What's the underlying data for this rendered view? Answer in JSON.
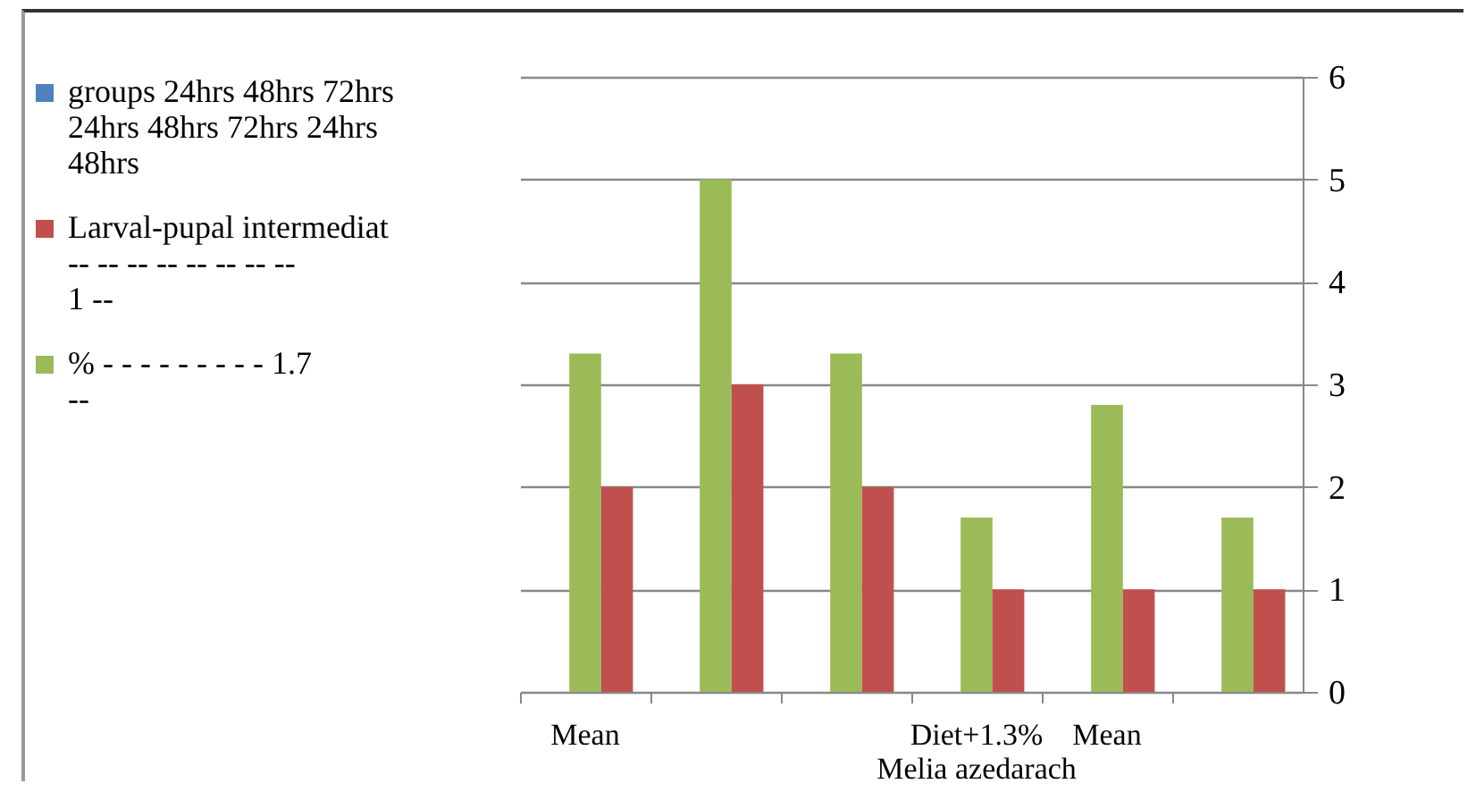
{
  "chart_data": {
    "type": "bar",
    "categories": [
      "Mean",
      null,
      null,
      "Diet+1.3% Melia azedarach",
      "Mean",
      null
    ],
    "series": [
      {
        "name": "groups 24hrs 48hrs 72hrs 24hrs 48hrs 72hrs 24hrs 48hrs",
        "color": "#4f81bd",
        "values": [
          null,
          null,
          null,
          null,
          null,
          null
        ]
      },
      {
        "name": "% - - - - - - - - - 1.7 --",
        "color": "#9bbb59",
        "values": [
          3.3,
          5,
          3.3,
          1.7,
          2.8,
          1.7
        ]
      },
      {
        "name": "Larval-pupal intermediat -- -- -- -- -- -- -- -- 1 --",
        "color": "#c0504d",
        "values": [
          2,
          3,
          2,
          1,
          1,
          1
        ]
      }
    ],
    "ylim": [
      0,
      6
    ],
    "yticks": [
      0,
      1,
      2,
      3,
      4,
      5,
      6
    ],
    "grid": "y",
    "legend": "left"
  }
}
